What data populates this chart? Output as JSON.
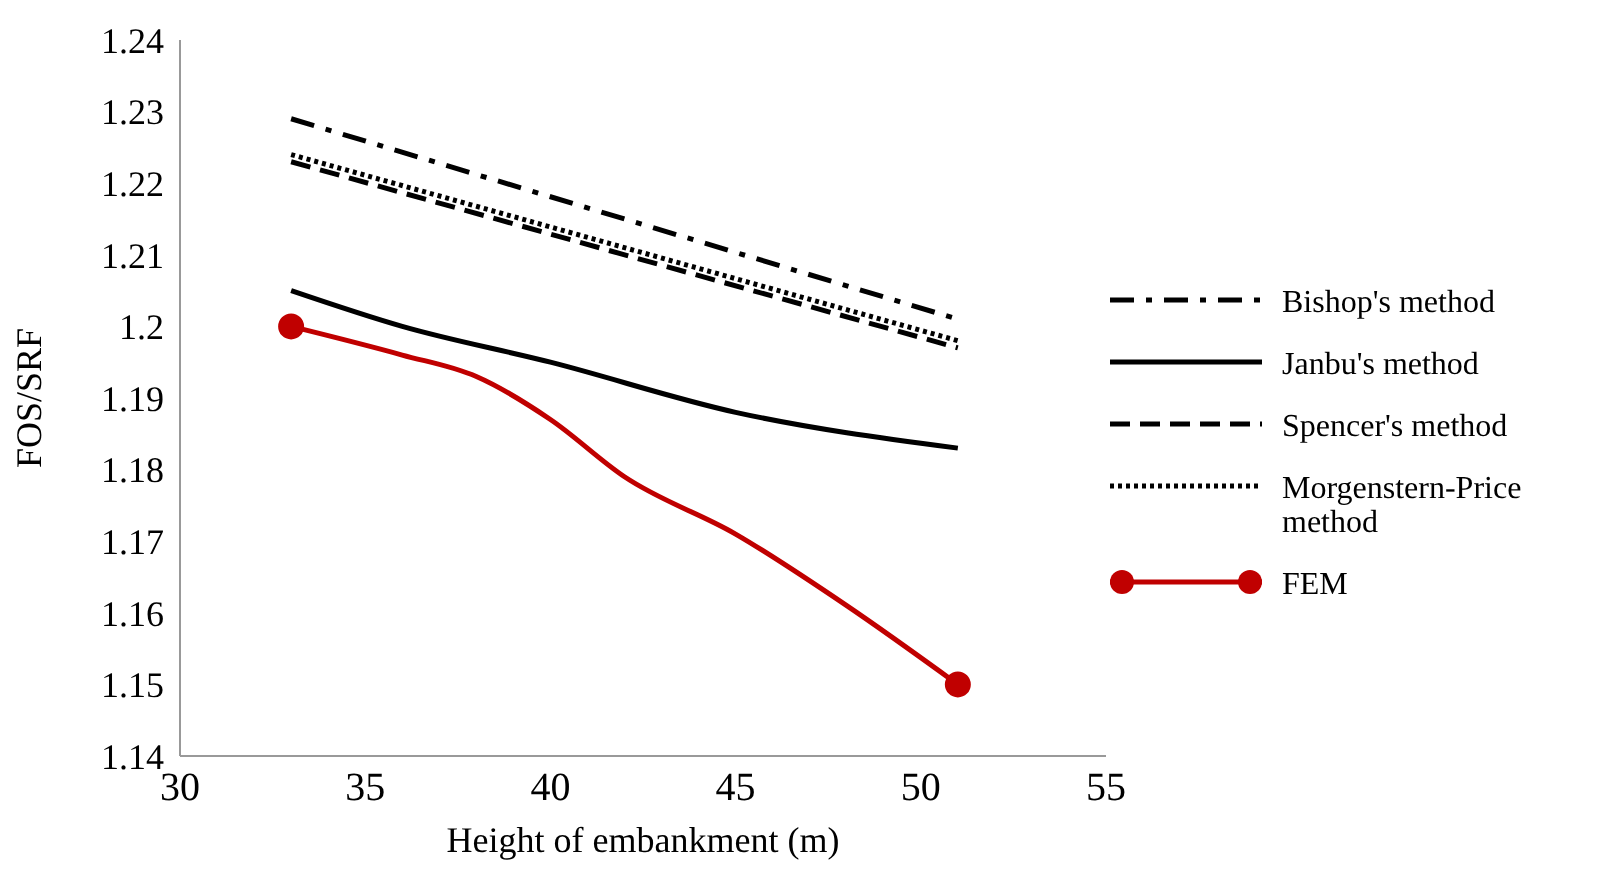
{
  "chart_data": {
    "type": "line",
    "xlabel": "Height of embankment (m)",
    "ylabel": "FOS/SRF",
    "xlim": [
      30,
      55
    ],
    "xticks": [
      30,
      35,
      40,
      45,
      50,
      55
    ],
    "ylim": [
      1.14,
      1.24
    ],
    "yticks": [
      1.14,
      1.15,
      1.16,
      1.17,
      1.18,
      1.19,
      1.2,
      1.21,
      1.22,
      1.23,
      1.24
    ],
    "grid": false,
    "legend": "right",
    "marker": "none",
    "series": [
      {
        "name": "Bishop's method",
        "color": "#000000",
        "line_style": "dashdot",
        "x": [
          33,
          51
        ],
        "values": [
          1.229,
          1.201
        ]
      },
      {
        "name": "Janbu's method",
        "color": "#000000",
        "line_style": "solid",
        "x": [
          33,
          36,
          40,
          45,
          51
        ],
        "values": [
          1.205,
          1.2,
          1.195,
          1.188,
          1.183
        ]
      },
      {
        "name": "Spencer's method",
        "color": "#000000",
        "line_style": "dashed",
        "x": [
          33,
          51
        ],
        "values": [
          1.223,
          1.197
        ]
      },
      {
        "name": "Morgenstern-Price method",
        "color": "#000000",
        "line_style": "dotted",
        "x": [
          33,
          51
        ],
        "values": [
          1.224,
          1.198
        ]
      },
      {
        "name": "FEM",
        "color": "#c00000",
        "line_style": "solid",
        "x": [
          33,
          36,
          38,
          40,
          42,
          45,
          48,
          51
        ],
        "values": [
          1.2,
          1.196,
          1.193,
          1.187,
          1.179,
          1.171,
          1.161,
          1.15
        ]
      },
      {
        "type": "scatter",
        "color": "#c00000",
        "marker": "circle",
        "x": [
          33,
          51
        ],
        "values": [
          1.2,
          1.15
        ]
      }
    ]
  }
}
